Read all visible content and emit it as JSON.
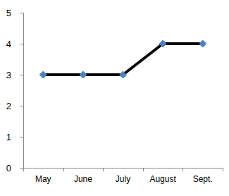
{
  "chart_data": {
    "type": "line",
    "categories": [
      "May",
      "June",
      "July",
      "August",
      "Sept."
    ],
    "values": [
      3,
      3,
      3,
      4,
      4
    ],
    "color": "#000000",
    "marker": "diamond",
    "ylim": [
      0,
      5
    ],
    "yticks": [
      0,
      1,
      2,
      3,
      4,
      5
    ],
    "grid": false
  }
}
